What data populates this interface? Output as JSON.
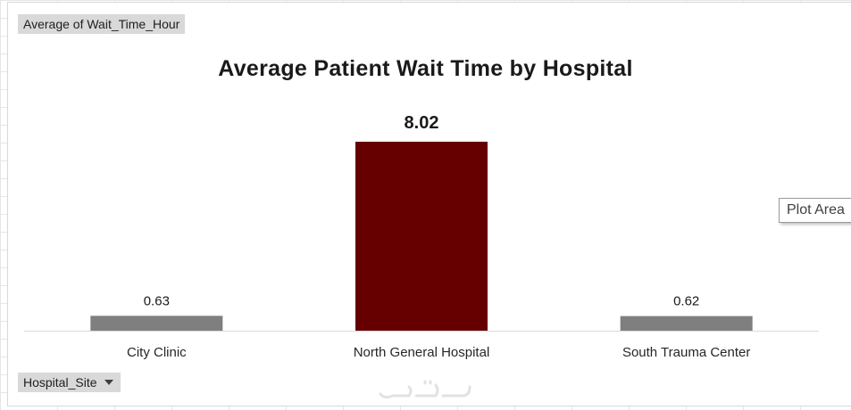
{
  "pivot_fields": {
    "value_field": "Average of Wait_Time_Hour",
    "axis_field": "Hospital_Site"
  },
  "tooltip": {
    "text": "Plot Area"
  },
  "chart_data": {
    "type": "bar",
    "title": "Average Patient Wait Time by Hospital",
    "categories": [
      "City Clinic",
      "North General Hospital",
      "South Trauma Center"
    ],
    "values": [
      0.63,
      8.02,
      0.62
    ],
    "data_labels": [
      "0.63",
      "8.02",
      "0.62"
    ],
    "ylim": [
      0,
      9
    ],
    "grid": false,
    "colors": [
      "#7f7f7f",
      "#660000",
      "#7f7f7f"
    ],
    "highlight_index": 1
  }
}
